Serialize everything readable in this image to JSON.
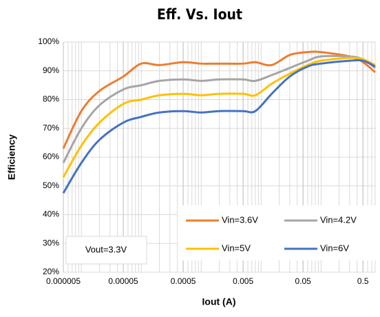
{
  "chart_data": {
    "type": "line",
    "title": "Eff. Vs. Iout",
    "x_label": "Iout (A)",
    "y_label": "Efficiency",
    "annotation": "Vout=3.3V",
    "x": [
      5e-06,
      1e-05,
      2e-05,
      5e-05,
      0.0001,
      0.0002,
      0.0005,
      0.001,
      0.002,
      0.005,
      0.008,
      0.015,
      0.03,
      0.06,
      0.1,
      0.3,
      0.5,
      0.8
    ],
    "series": [
      {
        "name": "Vin=3.6V",
        "color": "#ed7d31",
        "values": [
          63,
          76,
          83,
          88,
          92.5,
          92,
          93,
          92.5,
          92.5,
          92.5,
          93,
          92,
          95.5,
          96.5,
          96.5,
          95,
          93,
          89.5
        ]
      },
      {
        "name": "Vin=4.2V",
        "color": "#a5a5a5",
        "values": [
          58,
          70,
          78,
          83.5,
          85,
          86.5,
          87,
          86.5,
          87,
          87,
          86.5,
          88.5,
          91,
          93.5,
          95,
          95,
          94,
          91
        ]
      },
      {
        "name": "Vin=5V",
        "color": "#ffc000",
        "values": [
          53,
          64,
          72,
          78.5,
          80,
          81.5,
          82,
          81.5,
          82,
          82,
          81.5,
          85.5,
          89,
          92,
          93.5,
          94.5,
          94,
          92
        ]
      },
      {
        "name": "Vin=6V",
        "color": "#4472c4",
        "values": [
          47.5,
          58,
          66,
          72,
          74,
          75.5,
          76,
          75.5,
          76,
          76,
          76,
          82,
          88,
          91.5,
          92.5,
          93.5,
          93.5,
          91.5
        ]
      }
    ],
    "xlim": [
      5e-06,
      0.8
    ],
    "x_log": true,
    "xticks": [
      5e-06,
      5e-05,
      0.0005,
      0.005,
      0.05,
      0.5
    ],
    "ylim": [
      20,
      100
    ],
    "yticks": [
      {
        "value": 20,
        "label": "20%"
      },
      {
        "value": 30,
        "label": "30%"
      },
      {
        "value": 40,
        "label": "40%"
      },
      {
        "value": 50,
        "label": "50%"
      },
      {
        "value": 60,
        "label": "60%"
      },
      {
        "value": 70,
        "label": "70%"
      },
      {
        "value": 80,
        "label": "80%"
      },
      {
        "value": 90,
        "label": "90%"
      },
      {
        "value": 100,
        "label": "100%"
      }
    ],
    "grid": true,
    "minor_grid": true,
    "legend": "lower right"
  }
}
